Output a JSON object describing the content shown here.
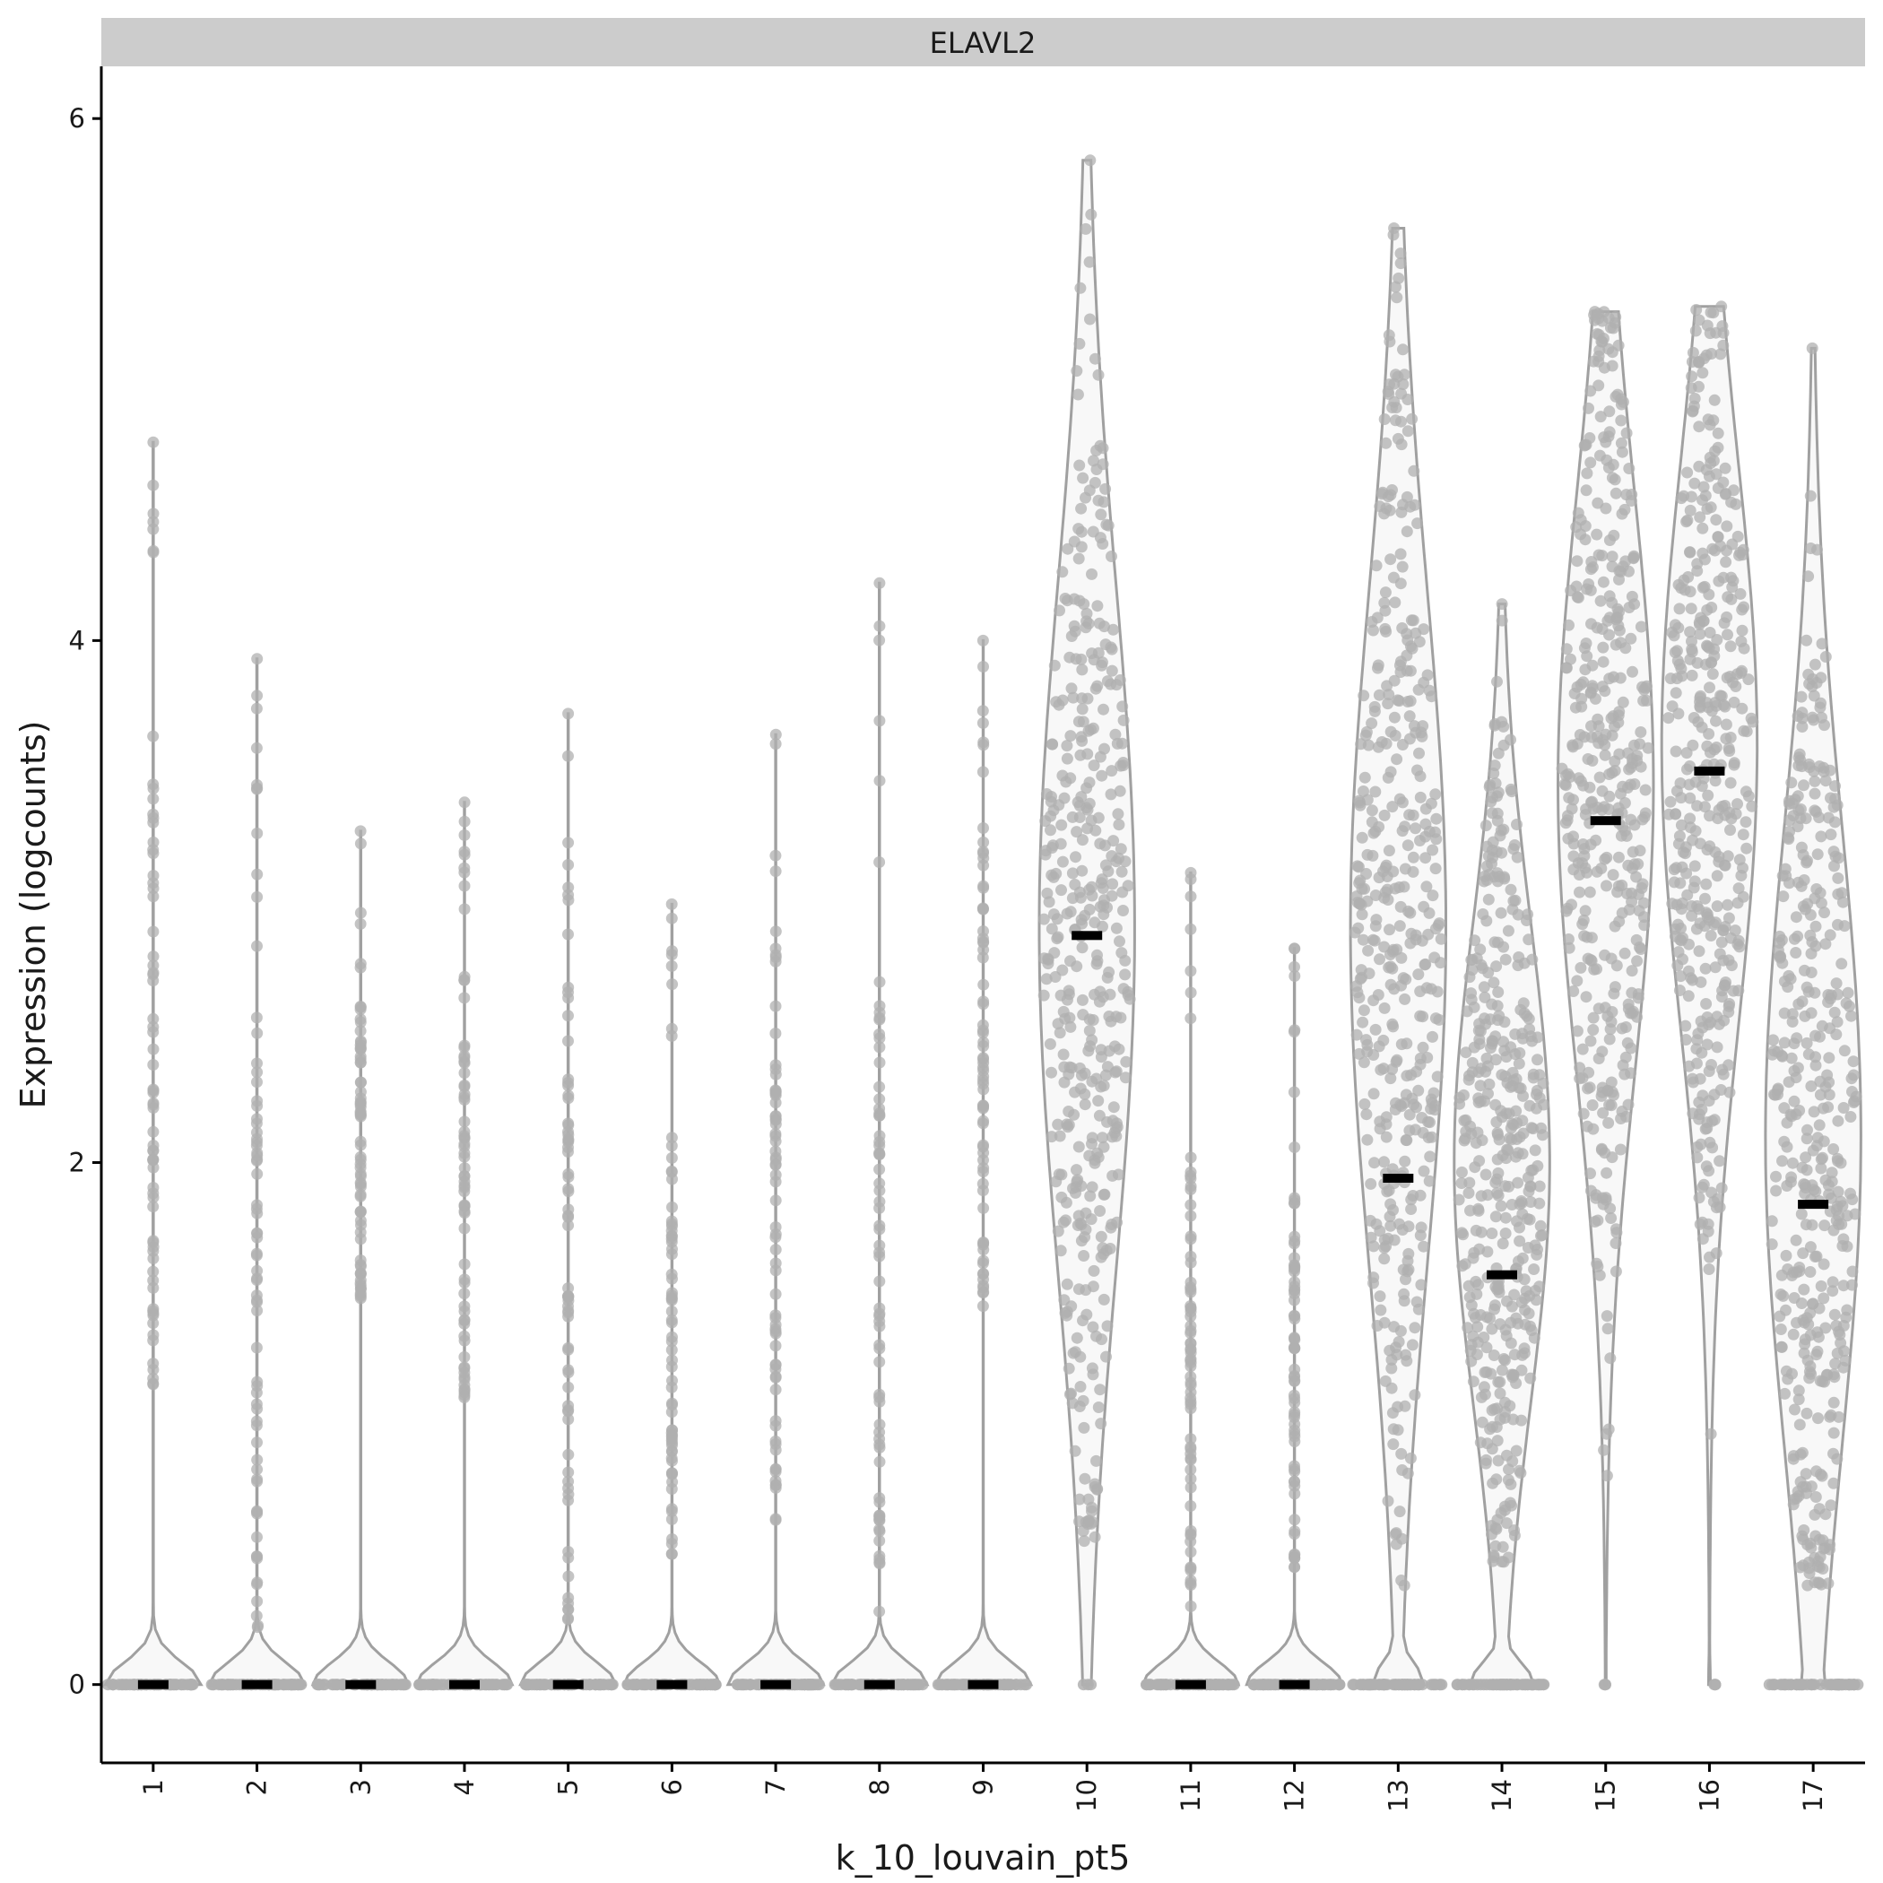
{
  "chart_data": {
    "type": "violin",
    "facet_label": "ELAVL2",
    "xlabel": "k_10_louvain_pt5",
    "ylabel": "Expression (logcounts)",
    "ylim": [
      -0.3,
      6.2
    ],
    "yticks": [
      0,
      2,
      4,
      6
    ],
    "categories": [
      "1",
      "2",
      "3",
      "4",
      "5",
      "6",
      "7",
      "8",
      "9",
      "10",
      "11",
      "12",
      "13",
      "14",
      "15",
      "16",
      "17"
    ],
    "median": [
      0,
      0,
      0,
      0,
      0,
      0,
      0,
      0,
      0,
      2.87,
      0,
      0,
      1.94,
      1.57,
      3.31,
      3.5,
      1.84
    ],
    "max": [
      4.76,
      3.93,
      3.27,
      3.38,
      3.72,
      2.99,
      3.64,
      4.22,
      4.0,
      5.84,
      3.11,
      2.82,
      5.58,
      4.14,
      5.26,
      5.28,
      5.12
    ],
    "min_nonzero": [
      1.15,
      0.22,
      1.48,
      1.1,
      0.25,
      0.5,
      0.63,
      0.28,
      1.45,
      0.55,
      0.3,
      0.45,
      0.38,
      0.47,
      0.8,
      0.96,
      0.38
    ],
    "violin_center": [
      0,
      0,
      0,
      0,
      0,
      0,
      0,
      0,
      0,
      2.9,
      0,
      0,
      2.9,
      2.0,
      3.45,
      3.6,
      2.1
    ],
    "violin_zero_fraction": [
      0.98,
      0.9,
      0.98,
      0.97,
      0.9,
      0.98,
      0.96,
      0.85,
      0.98,
      0.0,
      0.9,
      0.92,
      0.35,
      0.4,
      0.01,
      0.02,
      0.2
    ],
    "grid": false,
    "legend": "none"
  }
}
